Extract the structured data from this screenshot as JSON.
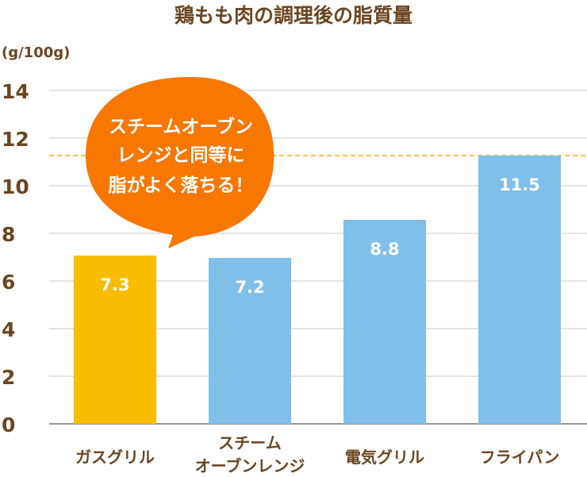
{
  "chart_data": {
    "type": "bar",
    "title": "鶏もも肉の調理後の脂質量",
    "ylabel": "(g/100g)",
    "xlabel": "",
    "ylim": [
      0,
      14
    ],
    "yticks": [
      "0",
      "2",
      "4",
      "6",
      "8",
      "10",
      "12",
      "14"
    ],
    "grid": true,
    "categories": [
      "ガスグリル",
      "スチーム\nオーブンレンジ",
      "電気グリル",
      "フライパン"
    ],
    "values": [
      7.3,
      7.2,
      8.8,
      11.5
    ],
    "value_labels": [
      "7.3",
      "7.2",
      "8.8",
      "11.5"
    ],
    "bar_colors": [
      "#f8bc00",
      "#80bfe9",
      "#80bfe9",
      "#80bfe9"
    ],
    "reference_line": {
      "value": 11.5,
      "color": "#f2b600",
      "style": "dashed"
    },
    "annotation": {
      "lines": [
        "スチームオーブン",
        "レンジと同等に",
        "脂がよく落ちる！"
      ],
      "color": "#f77700",
      "shape": "speech-bubble"
    }
  }
}
